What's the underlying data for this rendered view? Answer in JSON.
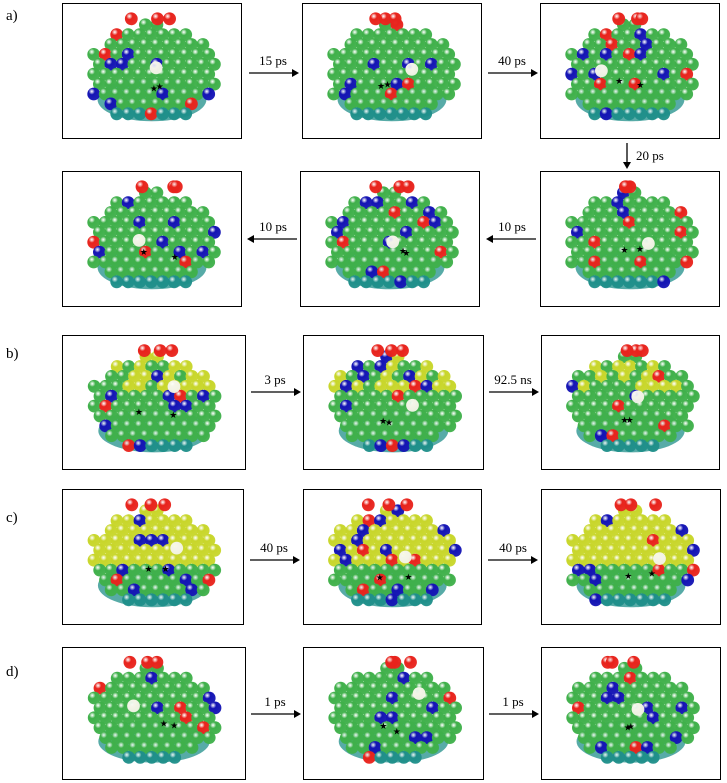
{
  "rows": [
    {
      "label": "a)"
    },
    {
      "label": "b)"
    },
    {
      "label": "c)"
    },
    {
      "label": "d)"
    }
  ],
  "transitions": {
    "a1": "15 ps",
    "a2": "40 ps",
    "a3": "20 ps",
    "a4": "10 ps",
    "a5": "10 ps",
    "b1": "3 ps",
    "b2": "92.5 ns",
    "c1": "40 ps",
    "c2": "40 ps",
    "d1": "1 ps",
    "d2": "1 ps"
  },
  "colors": {
    "host_green": "#3fb04a",
    "host_yellow": "#c8d62a",
    "blue_atom": "#1414b4",
    "red_atom": "#e8231c",
    "vacancy_white": "#f4f4e8",
    "base_teal": "#1f8f8a"
  },
  "marker_names": [
    "star-marker",
    "arrow-marker"
  ]
}
